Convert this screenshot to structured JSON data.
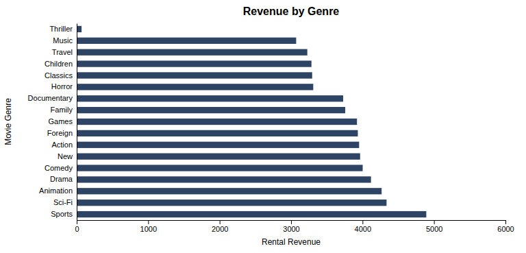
{
  "chart_data": {
    "type": "bar",
    "orientation": "horizontal",
    "title": "Revenue by Genre",
    "xlabel": "Rental Revenue",
    "ylabel": "Movie Genre",
    "color": "#2e4464",
    "xlim": [
      0,
      6000
    ],
    "xticks": [
      0,
      1000,
      2000,
      3000,
      4000,
      5000,
      6000
    ],
    "grid": false,
    "categories": [
      "Sports",
      "Sci-Fi",
      "Animation",
      "Drama",
      "Comedy",
      "New",
      "Action",
      "Foreign",
      "Games",
      "Family",
      "Documentary",
      "Horror",
      "Classics",
      "Children",
      "Travel",
      "Music",
      "Thriller"
    ],
    "values": [
      4892,
      4336,
      4267,
      4118,
      4002,
      3966,
      3952,
      3934,
      3922,
      3758,
      3729,
      3310,
      3295,
      3285,
      3227,
      3071,
      68
    ]
  }
}
